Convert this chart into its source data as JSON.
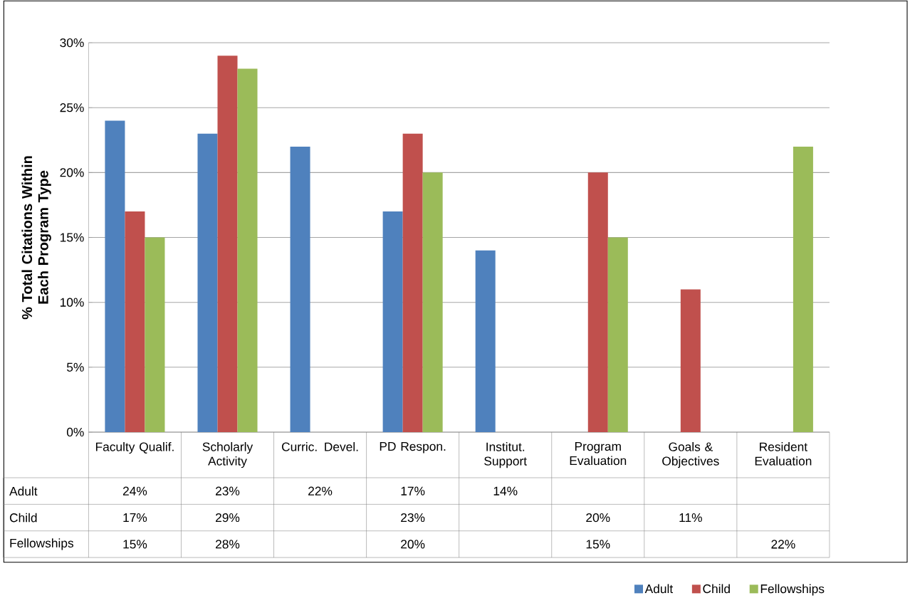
{
  "chart_data": {
    "type": "bar",
    "ylabel": "% Total Citations Within Each Program Type",
    "categories": [
      "Faculty Qualif.",
      "Scholarly Activity",
      "Curric. Devel.",
      "PD Respon.",
      "Institut. Support",
      "Program Evaluation",
      "Goals & Objectives",
      "Resident Evaluation"
    ],
    "series": [
      {
        "name": "Adult",
        "color": "#4f81bd",
        "values": [
          24,
          23,
          22,
          17,
          14,
          null,
          null,
          null
        ],
        "value_labels": [
          "24%",
          "23%",
          "22%",
          "17%",
          "14%",
          null,
          null,
          null
        ]
      },
      {
        "name": "Child",
        "color": "#c0504d",
        "values": [
          17,
          29,
          null,
          23,
          null,
          20,
          11,
          null
        ],
        "value_labels": [
          "17%",
          "29%",
          null,
          "23%",
          null,
          "20%",
          "11%",
          null
        ]
      },
      {
        "name": "Fellowships",
        "color": "#9bbb59",
        "values": [
          15,
          28,
          null,
          20,
          null,
          15,
          null,
          22
        ],
        "value_labels": [
          "15%",
          "28%",
          null,
          "20%",
          null,
          "15%",
          null,
          "22%"
        ]
      }
    ],
    "ylim": [
      0,
      30
    ],
    "yticks": [
      {
        "value": 0,
        "label": "0%"
      },
      {
        "value": 5,
        "label": "5%"
      },
      {
        "value": 10,
        "label": "10%"
      },
      {
        "value": 15,
        "label": "15%"
      },
      {
        "value": 20,
        "label": "20%"
      },
      {
        "value": 25,
        "label": "25%"
      },
      {
        "value": 30,
        "label": "30%"
      }
    ],
    "grid": "y",
    "legend": "bottom right"
  }
}
